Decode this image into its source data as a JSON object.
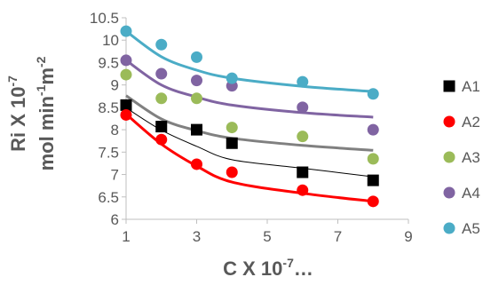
{
  "chart_data": {
    "type": "scatter",
    "xlabel": {
      "base": "C X 10",
      "exp": "-7",
      "suffix": "…"
    },
    "ylabel": {
      "line1_base": "Ri X 10",
      "line1_exp": "-7",
      "line2_pre": "mol min",
      "line2_exp1": "-1",
      "line2_mid": "m",
      "line2_exp2": "-2"
    },
    "xlim": [
      1,
      9
    ],
    "ylim": [
      6,
      10.5
    ],
    "xticks": [
      "1",
      "3",
      "5",
      "7",
      "9"
    ],
    "yticks": [
      "6",
      "6.5",
      "7",
      "7.5",
      "8",
      "8.5",
      "9",
      "9.5",
      "10",
      "10.5"
    ],
    "grid": false,
    "legend_position": "right",
    "series": [
      {
        "name": "A1",
        "marker": "square",
        "color": "#000000",
        "trend_color": "#000000",
        "trend_width": 1,
        "x": [
          1,
          2,
          3,
          4,
          6,
          8
        ],
        "y": [
          8.55,
          8.07,
          8.0,
          7.7,
          7.05,
          6.87
        ],
        "trend": [
          8.49,
          7.99,
          7.63,
          7.33,
          7.14,
          6.95
        ]
      },
      {
        "name": "A2",
        "marker": "circle",
        "color": "#ff0000",
        "trend_color": "#ff0000",
        "trend_width": 3,
        "x": [
          1,
          2,
          3,
          4,
          6,
          8
        ],
        "y": [
          8.33,
          7.78,
          7.23,
          7.05,
          6.65,
          6.4
        ],
        "trend": [
          8.35,
          7.68,
          7.19,
          6.83,
          6.58,
          6.4
        ]
      },
      {
        "name": "A3",
        "marker": "circle",
        "color": "#9bbb59",
        "trend_color": "#808080",
        "trend_width": 3,
        "x": [
          1,
          2,
          3,
          4,
          6,
          8
        ],
        "y": [
          9.23,
          8.7,
          8.7,
          8.05,
          7.85,
          7.35
        ],
        "trend": [
          8.76,
          8.24,
          7.98,
          7.81,
          7.65,
          7.54
        ]
      },
      {
        "name": "A4",
        "marker": "circle",
        "color": "#8064a2",
        "trend_color": "#8064a2",
        "trend_width": 3,
        "x": [
          1,
          2,
          3,
          4,
          6,
          8
        ],
        "y": [
          9.55,
          9.25,
          9.1,
          8.98,
          8.5,
          8.0
        ],
        "trend": [
          9.55,
          9.0,
          8.73,
          8.55,
          8.38,
          8.28
        ]
      },
      {
        "name": "A5",
        "marker": "circle",
        "color": "#4bacc6",
        "trend_color": "#4bacc6",
        "trend_width": 3,
        "x": [
          1,
          2,
          3,
          4,
          6,
          8
        ],
        "y": [
          10.2,
          9.9,
          9.62,
          9.15,
          9.07,
          8.8
        ],
        "trend": [
          10.2,
          9.63,
          9.33,
          9.15,
          8.97,
          8.85
        ]
      }
    ]
  }
}
